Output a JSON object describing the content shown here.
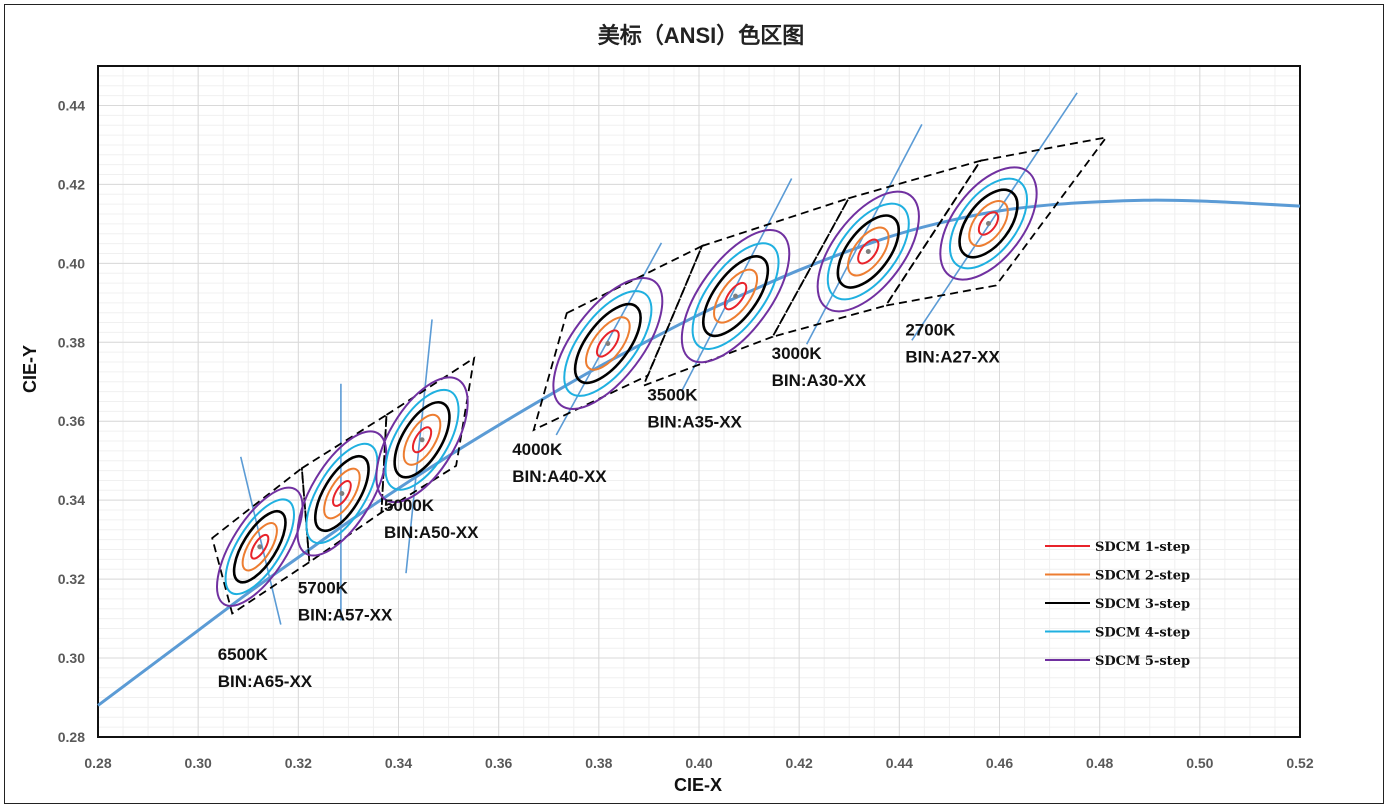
{
  "chart_data": {
    "type": "scatter",
    "title": "美标（ANSI）色区图",
    "xlabel": "CIE-X",
    "ylabel": "CIE-Y",
    "xlim": [
      0.28,
      0.52
    ],
    "ylim": [
      0.28,
      0.45
    ],
    "x_ticks": [
      "0.28",
      "0.30",
      "0.32",
      "0.34",
      "0.36",
      "0.38",
      "0.40",
      "0.42",
      "0.44",
      "0.46",
      "0.48",
      "0.50",
      "0.52"
    ],
    "y_ticks": [
      "0.28",
      "0.30",
      "0.32",
      "0.34",
      "0.36",
      "0.38",
      "0.40",
      "0.42",
      "0.44"
    ],
    "grid": true,
    "legend_position": "bottom-right",
    "colors": {
      "planckian": "#5b9bd5",
      "isotherm": "#5b9bd5",
      "quad": "#000000",
      "step1": "#e8232a",
      "step2": "#ed7d31",
      "step3": "#000000",
      "step4": "#1fb0e0",
      "step5": "#7030a0"
    },
    "legend": [
      {
        "label": "SDCM 1-step",
        "key": "step1"
      },
      {
        "label": "SDCM 2-step",
        "key": "step2"
      },
      {
        "label": "SDCM 3-step",
        "key": "step3"
      },
      {
        "label": "SDCM 4-step",
        "key": "step4"
      },
      {
        "label": "SDCM 5-step",
        "key": "step5"
      }
    ],
    "planckian_locus": [
      [
        0.28,
        0.288
      ],
      [
        0.29,
        0.2975
      ],
      [
        0.3,
        0.307
      ],
      [
        0.31,
        0.3165
      ],
      [
        0.32,
        0.3255
      ],
      [
        0.33,
        0.3345
      ],
      [
        0.34,
        0.343
      ],
      [
        0.35,
        0.3512
      ],
      [
        0.36,
        0.359
      ],
      [
        0.37,
        0.3665
      ],
      [
        0.38,
        0.3738
      ],
      [
        0.39,
        0.3805
      ],
      [
        0.4,
        0.387
      ],
      [
        0.41,
        0.3928
      ],
      [
        0.42,
        0.3983
      ],
      [
        0.43,
        0.4032
      ],
      [
        0.44,
        0.4075
      ],
      [
        0.45,
        0.4108
      ],
      [
        0.46,
        0.4133
      ],
      [
        0.47,
        0.4148
      ],
      [
        0.48,
        0.4156
      ],
      [
        0.49,
        0.416
      ],
      [
        0.5,
        0.4158
      ],
      [
        0.51,
        0.4152
      ],
      [
        0.52,
        0.4145
      ]
    ],
    "ellipses": [
      {
        "cct": "6500K",
        "cx": 0.3123,
        "cy": 0.3282,
        "a": 0.0027,
        "b": 0.0011,
        "angle": 58
      },
      {
        "cct": "5700K",
        "cx": 0.3287,
        "cy": 0.3417,
        "a": 0.0028,
        "b": 0.0012,
        "angle": 59
      },
      {
        "cct": "5000K",
        "cx": 0.3447,
        "cy": 0.3553,
        "a": 0.0028,
        "b": 0.0013,
        "angle": 59
      },
      {
        "cct": "4000K",
        "cx": 0.3818,
        "cy": 0.3797,
        "a": 0.0031,
        "b": 0.0014,
        "angle": 53
      },
      {
        "cct": "3500K",
        "cx": 0.4073,
        "cy": 0.3917,
        "a": 0.0031,
        "b": 0.0014,
        "angle": 54
      },
      {
        "cct": "3000K",
        "cx": 0.4338,
        "cy": 0.403,
        "a": 0.0028,
        "b": 0.0014,
        "angle": 53
      },
      {
        "cct": "2700K",
        "cx": 0.4578,
        "cy": 0.4101,
        "a": 0.0026,
        "b": 0.0014,
        "angle": 53
      }
    ],
    "isotherms": [
      [
        [
          0.3085,
          0.351
        ],
        [
          0.3165,
          0.3085
        ]
      ],
      [
        [
          0.3285,
          0.3695
        ],
        [
          0.3285,
          0.3095
        ]
      ],
      [
        [
          0.3415,
          0.3215
        ],
        [
          0.3467,
          0.3858
        ]
      ],
      [
        [
          0.3715,
          0.3565
        ],
        [
          0.3925,
          0.4052
        ]
      ],
      [
        [
          0.3965,
          0.3675
        ],
        [
          0.4185,
          0.4215
        ]
      ],
      [
        [
          0.4215,
          0.3795
        ],
        [
          0.4445,
          0.4352
        ]
      ],
      [
        [
          0.4425,
          0.3805
        ],
        [
          0.4755,
          0.4432
        ]
      ]
    ],
    "quads": [
      [
        [
          0.3028,
          0.3304
        ],
        [
          0.3207,
          0.3481
        ],
        [
          0.3222,
          0.3243
        ],
        [
          0.3068,
          0.3113
        ]
      ],
      [
        [
          0.3207,
          0.3481
        ],
        [
          0.3376,
          0.3616
        ],
        [
          0.3366,
          0.3369
        ],
        [
          0.3222,
          0.3243
        ]
      ],
      [
        [
          0.3376,
          0.3616
        ],
        [
          0.3551,
          0.376
        ],
        [
          0.3515,
          0.3487
        ],
        [
          0.3366,
          0.3369
        ]
      ],
      [
        [
          0.3736,
          0.3874
        ],
        [
          0.4006,
          0.4044
        ],
        [
          0.3898,
          0.3716
        ],
        [
          0.367,
          0.3578
        ]
      ],
      [
        [
          0.4006,
          0.4044
        ],
        [
          0.4299,
          0.4165
        ],
        [
          0.4147,
          0.3814
        ],
        [
          0.3889,
          0.369
        ]
      ],
      [
        [
          0.4299,
          0.4165
        ],
        [
          0.4562,
          0.426
        ],
        [
          0.4373,
          0.3893
        ],
        [
          0.4147,
          0.3814
        ]
      ],
      [
        [
          0.4562,
          0.426
        ],
        [
          0.4813,
          0.4319
        ],
        [
          0.4593,
          0.3944
        ],
        [
          0.4373,
          0.3893
        ]
      ]
    ],
    "annotations": [
      {
        "lines": [
          "6500K",
          "BIN:A65-XX"
        ],
        "x": 0.3039,
        "y": 0.2995
      },
      {
        "lines": [
          "5700K",
          "BIN:A57-XX"
        ],
        "x": 0.3199,
        "y": 0.3164
      },
      {
        "lines": [
          "5000K",
          "BIN:A50-XX"
        ],
        "x": 0.3371,
        "y": 0.3373
      },
      {
        "lines": [
          "4000K",
          "BIN:A40-XX"
        ],
        "x": 0.3627,
        "y": 0.3515
      },
      {
        "lines": [
          "3500K",
          "BIN:A35-XX"
        ],
        "x": 0.3897,
        "y": 0.3652
      },
      {
        "lines": [
          "3000K",
          "BIN:A30-XX"
        ],
        "x": 0.4145,
        "y": 0.3758
      },
      {
        "lines": [
          "2700K",
          "BIN:A27-XX"
        ],
        "x": 0.4412,
        "y": 0.3817
      }
    ]
  }
}
